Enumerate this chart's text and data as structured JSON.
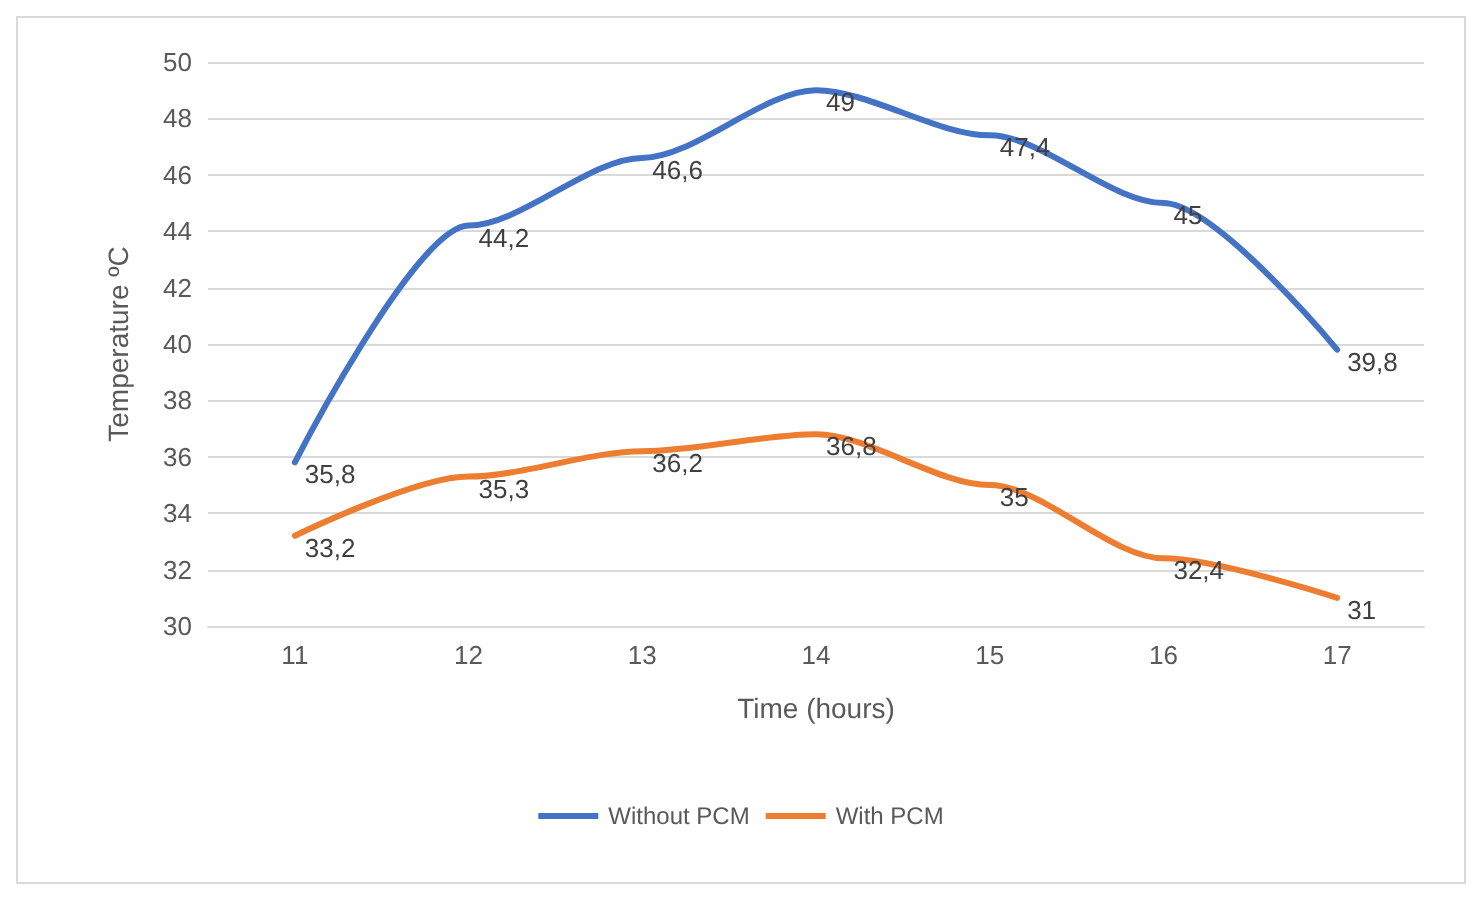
{
  "chart_data": {
    "type": "line",
    "xlabel": "Time (hours)",
    "ylabel": "Temperature ºC",
    "categories": [
      "11",
      "12",
      "13",
      "14",
      "15",
      "16",
      "17"
    ],
    "series": [
      {
        "name": "Without PCM",
        "color": "#4472c4",
        "values": [
          35.8,
          44.2,
          46.6,
          49,
          47.4,
          45,
          39.8
        ],
        "value_labels": [
          "35,8",
          "44,2",
          "46,6",
          "49",
          "47,4",
          "45",
          "39,8"
        ]
      },
      {
        "name": "With PCM",
        "color": "#ed7d31",
        "values": [
          33.2,
          35.3,
          36.2,
          36.8,
          35,
          32.4,
          31
        ],
        "value_labels": [
          "33,2",
          "35,3",
          "36,2",
          "36,8",
          "35",
          "32,4",
          "31"
        ]
      }
    ],
    "ylim": [
      30,
      50
    ],
    "yticks": [
      30,
      32,
      34,
      36,
      38,
      40,
      42,
      44,
      46,
      48,
      50
    ],
    "grid": "y",
    "legend": "bottom",
    "marker": "none",
    "line_style": "solid"
  }
}
